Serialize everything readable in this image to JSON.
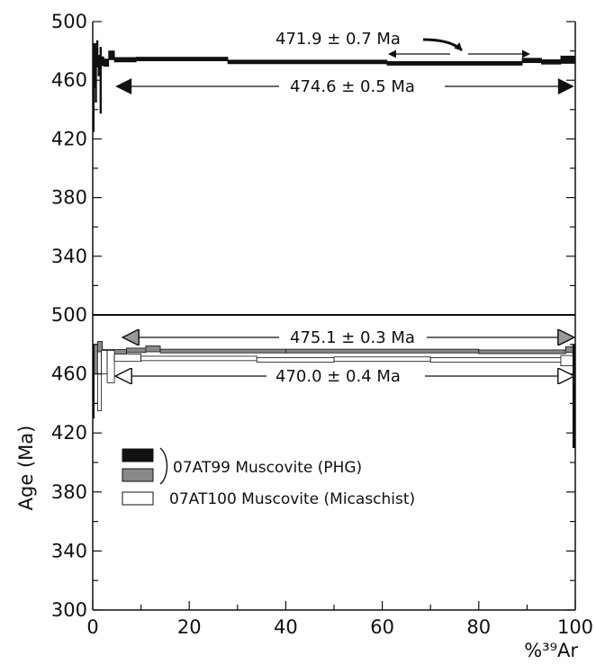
{
  "chart_data": [
    {
      "type": "area",
      "panel": "top",
      "xlim": [
        0,
        100
      ],
      "ylim": [
        300,
        500
      ],
      "y_ticks": [
        "500",
        "460",
        "420",
        "380",
        "340"
      ],
      "series": [
        {
          "color": "#111111",
          "steps": [
            {
              "x0": 0.0,
              "x1": 0.3,
              "y": 455,
              "h": 60
            },
            {
              "x0": 0.3,
              "x1": 0.5,
              "y": 470,
              "h": 30
            },
            {
              "x0": 0.5,
              "x1": 0.8,
              "y": 465,
              "h": 40
            },
            {
              "x0": 0.8,
              "x1": 1.1,
              "y": 478,
              "h": 18
            },
            {
              "x0": 1.1,
              "x1": 1.5,
              "y": 470,
              "h": 14
            },
            {
              "x0": 1.5,
              "x1": 1.8,
              "y": 460,
              "h": 45
            },
            {
              "x0": 1.8,
              "x1": 2.3,
              "y": 473,
              "h": 6
            },
            {
              "x0": 2.3,
              "x1": 3.3,
              "y": 472,
              "h": 5
            },
            {
              "x0": 3.3,
              "x1": 4.5,
              "y": 477,
              "h": 6
            },
            {
              "x0": 4.5,
              "x1": 9.0,
              "y": 474,
              "h": 3
            },
            {
              "x0": 9.0,
              "x1": 28.0,
              "y": 474.5,
              "h": 2.5
            },
            {
              "x0": 28.0,
              "x1": 61.0,
              "y": 472.5,
              "h": 2.5
            },
            {
              "x0": 61.0,
              "x1": 89.0,
              "y": 471.5,
              "h": 2.5
            },
            {
              "x0": 89.0,
              "x1": 93.0,
              "y": 473.5,
              "h": 3
            },
            {
              "x0": 93.0,
              "x1": 97.0,
              "y": 472.5,
              "h": 3
            },
            {
              "x0": 97.0,
              "x1": 100.0,
              "y": 474,
              "h": 5
            }
          ]
        }
      ],
      "annotations": [
        {
          "label": "471.9 ± 0.7 Ma",
          "x0": 61,
          "x1": 89
        },
        {
          "label": "474.6 ± 0.5 Ma",
          "x0": 5,
          "x1": 100
        }
      ]
    },
    {
      "type": "area",
      "panel": "bottom",
      "xlim": [
        0,
        100
      ],
      "ylim": [
        300,
        500
      ],
      "x_ticks": [
        "0",
        "20",
        "40",
        "60",
        "80",
        "100"
      ],
      "y_ticks": [
        "500",
        "460",
        "420",
        "380",
        "340",
        "300"
      ],
      "ylabel": "Age (Ma)",
      "xlabel": "%³⁹Ar",
      "series": [
        {
          "name": "07AT99 Muscovite (PHG)",
          "color": "#111111",
          "steps": [
            {
              "x0": 0.0,
              "x1": 0.3,
              "y": 455,
              "h": 50
            },
            {
              "x0": 99.5,
              "x1": 100.0,
              "y": 445,
              "h": 70
            }
          ]
        },
        {
          "name": "07AT99 Muscovite (PHG)",
          "color": "#888888",
          "steps": [
            {
              "x0": 0.3,
              "x1": 1.0,
              "y": 470,
              "h": 20
            },
            {
              "x0": 1.0,
              "x1": 2.0,
              "y": 478,
              "h": 8
            },
            {
              "x0": 2.0,
              "x1": 7.0,
              "y": 475,
              "h": 3
            },
            {
              "x0": 7.0,
              "x1": 11.0,
              "y": 476,
              "h": 3
            },
            {
              "x0": 11.0,
              "x1": 14.0,
              "y": 477,
              "h": 4
            },
            {
              "x0": 14.0,
              "x1": 40.0,
              "y": 475.5,
              "h": 2.5
            },
            {
              "x0": 40.0,
              "x1": 80.0,
              "y": 475.5,
              "h": 2.5
            },
            {
              "x0": 80.0,
              "x1": 98.0,
              "y": 475,
              "h": 2.5
            },
            {
              "x0": 98.0,
              "x1": 99.5,
              "y": 476.5,
              "h": 4
            }
          ]
        },
        {
          "name": "07AT100 Muscovite (Micaschist)",
          "color": "#ffffff",
          "steps": [
            {
              "x0": 1.0,
              "x1": 1.8,
              "y": 455,
              "h": 40
            },
            {
              "x0": 1.8,
              "x1": 3.0,
              "y": 468,
              "h": 16
            },
            {
              "x0": 3.0,
              "x1": 4.5,
              "y": 465,
              "h": 22
            },
            {
              "x0": 4.5,
              "x1": 10.0,
              "y": 471,
              "h": 5
            },
            {
              "x0": 10.0,
              "x1": 34.0,
              "y": 470.5,
              "h": 3
            },
            {
              "x0": 34.0,
              "x1": 50.0,
              "y": 469.5,
              "h": 3
            },
            {
              "x0": 50.0,
              "x1": 70.0,
              "y": 470,
              "h": 3
            },
            {
              "x0": 70.0,
              "x1": 97.0,
              "y": 469.5,
              "h": 3
            },
            {
              "x0": 97.0,
              "x1": 99.5,
              "y": 469,
              "h": 7
            }
          ]
        }
      ],
      "annotations": [
        {
          "label": "475.1 ± 0.3 Ma",
          "x0": 7,
          "x1": 100
        },
        {
          "label": "470.0 ± 0.4 Ma",
          "x0": 5,
          "x1": 100
        }
      ],
      "legend": {
        "placement": "center-left",
        "items": [
          {
            "label": "07AT99 Muscovite (PHG)",
            "colors": [
              "#111111",
              "#888888"
            ]
          },
          {
            "label": "07AT100 Muscovite (Micaschist)",
            "colors": [
              "#ffffff"
            ]
          }
        ]
      }
    }
  ]
}
